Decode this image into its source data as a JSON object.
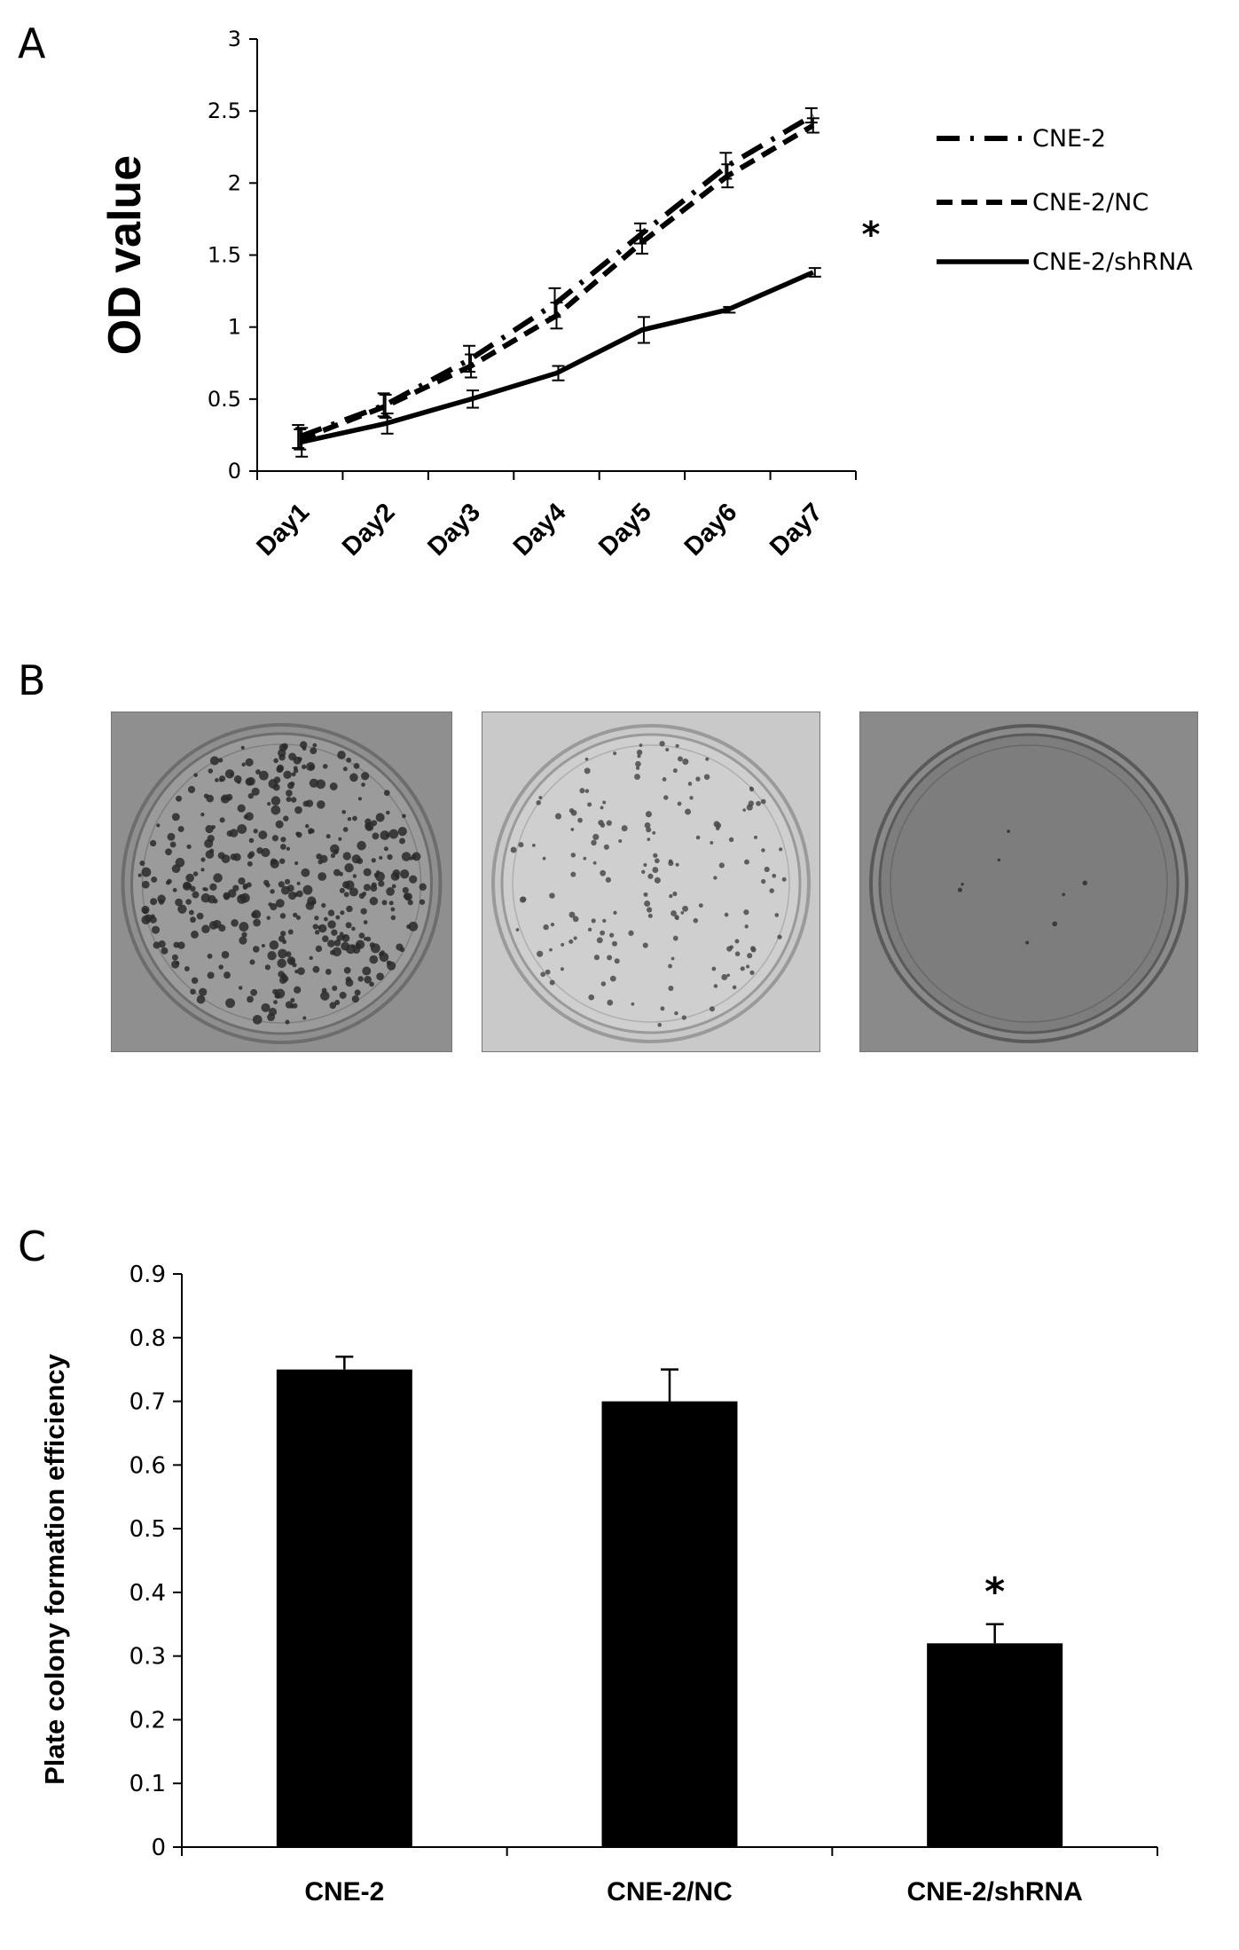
{
  "panels": {
    "a_label": "A",
    "b_label": "B",
    "c_label": "C"
  },
  "chart_data": [
    {
      "type": "line",
      "panel": "A",
      "ylabel": "OD value",
      "xlabel": "",
      "categories": [
        "Day1",
        "Day2",
        "Day3",
        "Day4",
        "Day5",
        "Day6",
        "Day7"
      ],
      "ylim": [
        0,
        3
      ],
      "yticks": [
        "0",
        "0.5",
        "1",
        "1.5",
        "2",
        "2.5",
        "3"
      ],
      "legend_position": "right",
      "series": [
        {
          "name": "CNE-2",
          "style": "dash-dot",
          "values": [
            0.24,
            0.46,
            0.78,
            1.17,
            1.65,
            2.12,
            2.47
          ],
          "errors": [
            0.08,
            0.08,
            0.09,
            0.1,
            0.07,
            0.09,
            0.05
          ]
        },
        {
          "name": "CNE-2/NC",
          "style": "dashed",
          "values": [
            0.22,
            0.45,
            0.73,
            1.08,
            1.59,
            2.05,
            2.4
          ],
          "errors": [
            0.07,
            0.08,
            0.08,
            0.09,
            0.08,
            0.08,
            0.05
          ]
        },
        {
          "name": "CNE-2/shRNA",
          "style": "solid",
          "values": [
            0.2,
            0.33,
            0.5,
            0.68,
            0.98,
            1.12,
            1.38
          ],
          "errors": [
            0.1,
            0.07,
            0.06,
            0.05,
            0.09,
            0.02,
            0.03
          ]
        }
      ],
      "annotation": "*"
    },
    {
      "type": "bar",
      "panel": "C",
      "ylabel": "Plate colony formation efficiency",
      "xlabel": "",
      "categories": [
        "CNE-2",
        "CNE-2/NC",
        "CNE-2/shRNA"
      ],
      "values": [
        0.75,
        0.7,
        0.32
      ],
      "errors": [
        0.02,
        0.05,
        0.03
      ],
      "ylim": [
        0,
        0.9
      ],
      "yticks": [
        "0",
        "0.1",
        "0.2",
        "0.3",
        "0.4",
        "0.5",
        "0.6",
        "0.7",
        "0.8",
        "0.9"
      ],
      "bar_color": "#000000",
      "annotation": "*"
    }
  ],
  "photos": [
    {
      "name": "CNE-2 plate",
      "tone": "#8f8f8f"
    },
    {
      "name": "CNE-2/NC plate",
      "tone": "#c9c9c9"
    },
    {
      "name": "CNE-2/shRNA plate",
      "tone": "#8a8a8a"
    }
  ]
}
